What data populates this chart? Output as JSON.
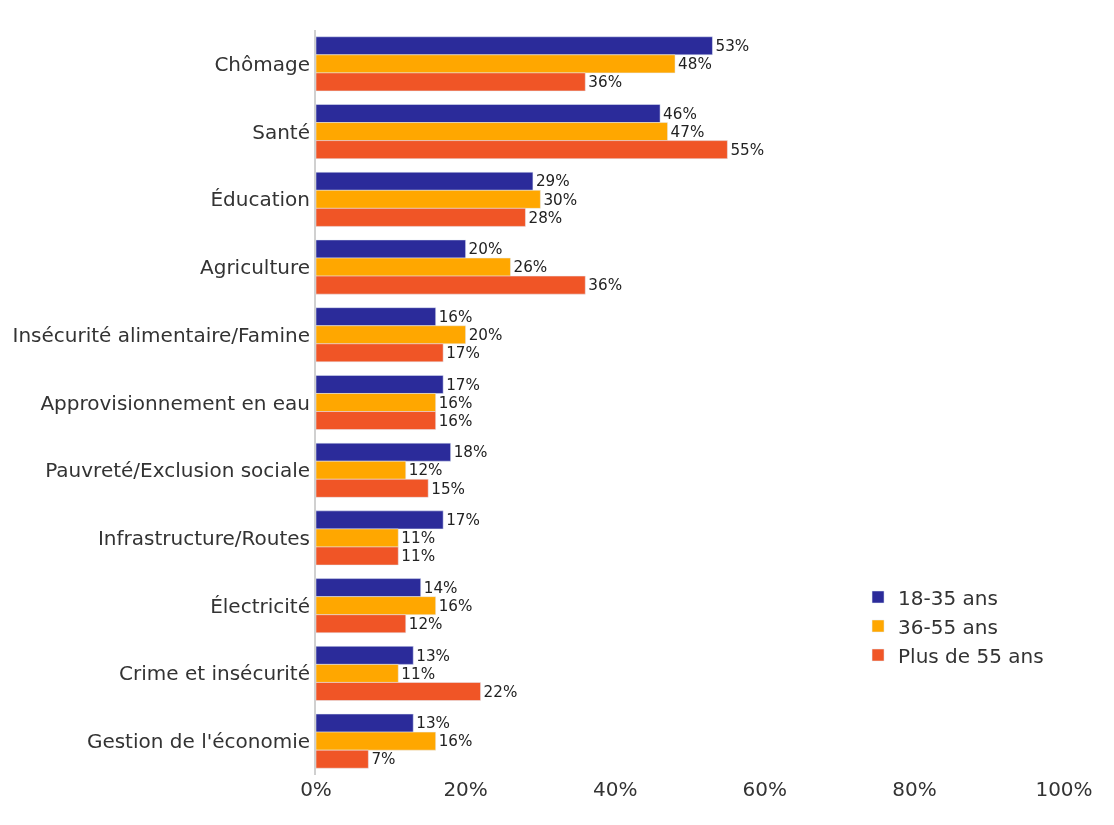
{
  "chart_data": {
    "type": "bar",
    "orientation": "horizontal",
    "categories": [
      "Chômage",
      "Santé",
      "Éducation",
      "Agriculture",
      "Insécurité alimentaire/Famine",
      "Approvisionnement en eau",
      "Pauvreté/Exclusion sociale",
      "Infrastructure/Routes",
      "Électricité",
      "Crime et insécurité",
      "Gestion de l'économie"
    ],
    "series": [
      {
        "name": "18-35 ans",
        "color": "#2b2b9a",
        "values": [
          53,
          46,
          29,
          20,
          16,
          17,
          18,
          17,
          14,
          13,
          13
        ],
        "value_labels": [
          "53%",
          "46%",
          "29%",
          "20%",
          "16%",
          "17%",
          "18%",
          "17%",
          "14%",
          "13%",
          "13%"
        ]
      },
      {
        "name": "36-55 ans",
        "color": "#ffa700",
        "values": [
          48,
          47,
          30,
          26,
          20,
          16,
          12,
          11,
          16,
          11,
          16
        ],
        "value_labels": [
          "48%",
          "47%",
          "30%",
          "26%",
          "20%",
          "16%",
          "12%",
          "11%",
          "16%",
          "11%",
          "16%"
        ]
      },
      {
        "name": "Plus de 55 ans",
        "color": "#f05526",
        "values": [
          36,
          55,
          28,
          36,
          17,
          16,
          15,
          11,
          12,
          22,
          7
        ],
        "value_labels": [
          "36%",
          "55%",
          "28%",
          "36%",
          "17%",
          "16%",
          "15%",
          "11%",
          "12%",
          "22%",
          "7%"
        ]
      }
    ],
    "xlim": [
      0,
      100
    ],
    "xticks": [
      {
        "value": 0,
        "label": "0%"
      },
      {
        "value": 20,
        "label": "20%"
      },
      {
        "value": 40,
        "label": "40%"
      },
      {
        "value": 60,
        "label": "60%"
      },
      {
        "value": 80,
        "label": "80%"
      },
      {
        "value": 100,
        "label": "100%"
      }
    ],
    "legend": "right"
  }
}
